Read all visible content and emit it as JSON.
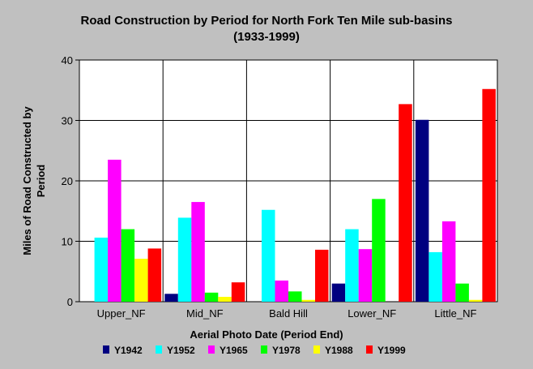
{
  "chart_data": {
    "type": "bar",
    "title": "Road Construction by Period for North Fork Ten Mile sub-basins",
    "subtitle": "(1933-1999)",
    "xlabel": "Aerial Photo Date (Period End)",
    "ylabel": "Miles of Road Constructed by Period",
    "ylim": [
      0,
      40
    ],
    "yticks": [
      0,
      10,
      20,
      30,
      40
    ],
    "grid": true,
    "legend_position": "bottom",
    "categories": [
      "Upper_NF",
      "Mid_NF",
      "Bald Hill",
      "Lower_NF",
      "Little_NF"
    ],
    "series": [
      {
        "name": "Y1942",
        "color": "#000080",
        "values": [
          0,
          1.3,
          0,
          3.0,
          30.1
        ]
      },
      {
        "name": "Y1952",
        "color": "#00ffff",
        "values": [
          10.6,
          13.9,
          15.2,
          12.0,
          8.2
        ]
      },
      {
        "name": "Y1965",
        "color": "#ff00ff",
        "values": [
          23.5,
          16.5,
          3.5,
          8.7,
          13.3
        ]
      },
      {
        "name": "Y1978",
        "color": "#00ff00",
        "values": [
          12.0,
          1.5,
          1.7,
          17.0,
          3.0
        ]
      },
      {
        "name": "Y1988",
        "color": "#ffff00",
        "values": [
          7.1,
          0.8,
          0.3,
          0,
          0.3
        ]
      },
      {
        "name": "Y1999",
        "color": "#ff0000",
        "values": [
          8.8,
          3.2,
          8.6,
          32.7,
          35.2
        ]
      }
    ]
  }
}
